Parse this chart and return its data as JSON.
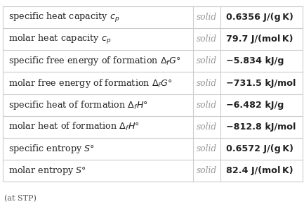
{
  "rows": [
    {
      "property": "specific heat capacity $c_p$",
      "state": "solid",
      "value": "0.6356 J/(g K)"
    },
    {
      "property": "molar heat capacity $c_p$",
      "state": "solid",
      "value": "79.7 J/(mol K)"
    },
    {
      "property": "specific free energy of formation $\\Delta_f G°$",
      "state": "solid",
      "value": "−5.834 kJ/g"
    },
    {
      "property": "molar free energy of formation $\\Delta_f G°$",
      "state": "solid",
      "value": "−731.5 kJ/mol"
    },
    {
      "property": "specific heat of formation $\\Delta_f H°$",
      "state": "solid",
      "value": "−6.482 kJ/g"
    },
    {
      "property": "molar heat of formation $\\Delta_f H°$",
      "state": "solid",
      "value": "−812.8 kJ/mol"
    },
    {
      "property": "specific entropy $S°$",
      "state": "solid",
      "value": "0.6572 J/(g K)"
    },
    {
      "property": "molar entropy $S°$",
      "state": "solid",
      "value": "82.4 J/(mol K)"
    }
  ],
  "footer": "(at STP)",
  "bg_color": "#ffffff",
  "line_color": "#cccccc",
  "property_color": "#222222",
  "state_color": "#999999",
  "value_color": "#222222",
  "footer_color": "#555555",
  "property_fontsize": 9.2,
  "state_fontsize": 8.8,
  "value_fontsize": 9.2,
  "footer_fontsize": 8.0
}
